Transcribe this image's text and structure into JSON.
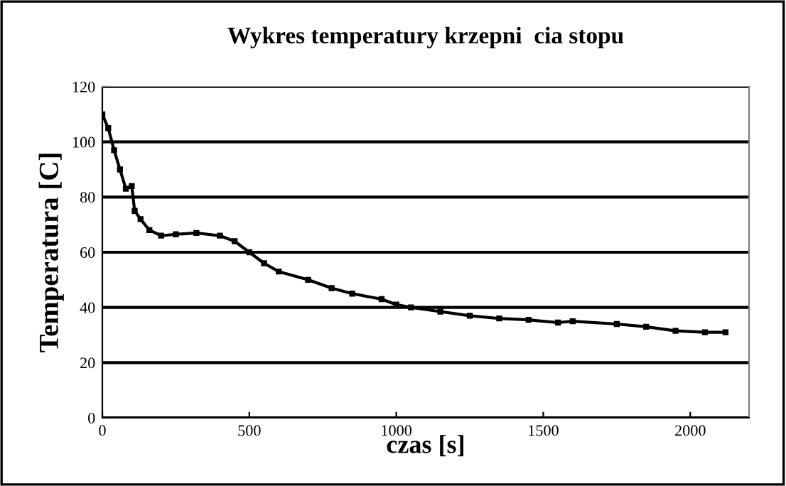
{
  "chart_data": {
    "type": "line",
    "title": "Wykres temperatury krzepni  cia stopu",
    "xlabel": "czas [s]",
    "ylabel": "Temperatura [C]",
    "xlim": [
      0,
      2200
    ],
    "xticks": [
      0,
      500,
      1000,
      1500,
      2000
    ],
    "ylim": [
      0,
      120
    ],
    "yticks": [
      0,
      20,
      40,
      60,
      80,
      100,
      120
    ],
    "grid": "y",
    "marker": "square",
    "line_style": "solid",
    "series": [
      {
        "color": "#000000",
        "x": [
          0,
          20,
          40,
          60,
          80,
          100,
          110,
          130,
          160,
          200,
          250,
          320,
          400,
          450,
          500,
          550,
          600,
          700,
          780,
          850,
          950,
          1000,
          1050,
          1150,
          1250,
          1350,
          1450,
          1550,
          1600,
          1750,
          1850,
          1950,
          2050,
          2120
        ],
        "values": [
          110,
          105,
          97,
          90,
          83,
          84,
          75,
          72,
          68,
          66,
          66.5,
          67,
          66,
          64,
          60,
          56,
          53,
          50,
          47,
          45,
          43,
          41,
          40,
          38.5,
          37,
          36,
          35.5,
          34.5,
          35,
          34,
          33,
          31.5,
          31,
          31
        ]
      }
    ]
  }
}
